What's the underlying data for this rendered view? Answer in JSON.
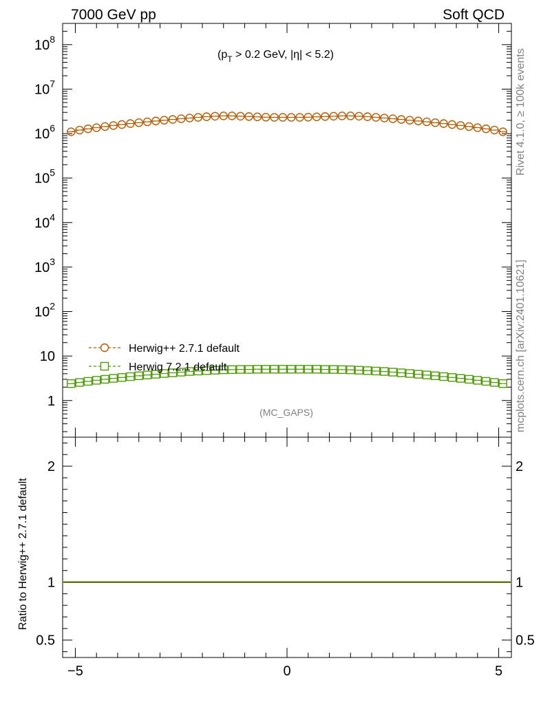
{
  "header": {
    "left": "7000 GeV pp",
    "right": "Soft QCD"
  },
  "side": {
    "rivet": "Rivet 4.1.0, ≥ 100k events",
    "mcplots": "mcplots.cern.ch [arXiv:2401.10621]"
  },
  "cut": {
    "open": "(p",
    "sub": "T",
    "rest": " > 0.2 GeV, |η| < 5.2)"
  },
  "analysis": "(MC_GAPS)",
  "ratio_ylabel": "Ratio to Herwig++ 2.7.1 default",
  "colors": {
    "herwigpp": "#b35900",
    "herwig7": "#4e9a06",
    "ratio_band": "#ccee66",
    "axis": "#000000",
    "muted": "#808080"
  },
  "chart_data": [
    {
      "type": "scatter",
      "yscale": "log",
      "xlim": [
        -5.3,
        5.3
      ],
      "ylim": [
        0.15,
        300000000
      ],
      "ytick_labels": [
        {
          "value": 1,
          "label": "1"
        },
        {
          "value": 10,
          "label": "10"
        },
        {
          "value": 100,
          "label": "10",
          "exp": "2"
        },
        {
          "value": 1000,
          "label": "10",
          "exp": "3"
        },
        {
          "value": 10000,
          "label": "10",
          "exp": "4"
        },
        {
          "value": 100000,
          "label": "10",
          "exp": "5"
        },
        {
          "value": 1000000,
          "label": "10",
          "exp": "6"
        },
        {
          "value": 10000000,
          "label": "10",
          "exp": "7"
        },
        {
          "value": 100000000,
          "label": "10",
          "exp": "8"
        }
      ],
      "x": [
        -5.1,
        -4.9,
        -4.7,
        -4.5,
        -4.3,
        -4.1,
        -3.9,
        -3.7,
        -3.5,
        -3.3,
        -3.1,
        -2.9,
        -2.7,
        -2.5,
        -2.3,
        -2.1,
        -1.9,
        -1.7,
        -1.5,
        -1.3,
        -1.1,
        -0.9,
        -0.7,
        -0.5,
        -0.3,
        -0.1,
        0.1,
        0.3,
        0.5,
        0.7,
        0.9,
        1.1,
        1.3,
        1.5,
        1.7,
        1.9,
        2.1,
        2.3,
        2.5,
        2.7,
        2.9,
        3.1,
        3.3,
        3.5,
        3.7,
        3.9,
        4.1,
        4.3,
        4.5,
        4.7,
        4.9,
        5.1
      ],
      "series": [
        {
          "name": "Herwig++ 2.7.1 default",
          "marker": "circle",
          "values": [
            1100000,
            1200000,
            1280000,
            1360000,
            1440000,
            1520000,
            1600000,
            1680000,
            1760000,
            1840000,
            1920000,
            2000000,
            2080000,
            2160000,
            2240000,
            2320000,
            2400000,
            2460000,
            2500000,
            2500000,
            2460000,
            2420000,
            2380000,
            2340000,
            2320000,
            2320000,
            2320000,
            2320000,
            2340000,
            2380000,
            2420000,
            2460000,
            2500000,
            2500000,
            2460000,
            2400000,
            2320000,
            2240000,
            2160000,
            2080000,
            2000000,
            1920000,
            1840000,
            1760000,
            1680000,
            1600000,
            1520000,
            1440000,
            1360000,
            1280000,
            1200000,
            1100000
          ]
        },
        {
          "name": "Herwig 7.2.1 default",
          "marker": "square",
          "values": [
            2.4,
            2.55,
            2.7,
            2.85,
            3.0,
            3.15,
            3.3,
            3.45,
            3.6,
            3.75,
            3.9,
            4.05,
            4.2,
            4.35,
            4.5,
            4.6,
            4.7,
            4.8,
            4.9,
            4.95,
            5.0,
            5.0,
            5.05,
            5.05,
            5.05,
            5.05,
            5.05,
            5.05,
            5.05,
            5.05,
            5.0,
            5.0,
            4.95,
            4.9,
            4.8,
            4.7,
            4.6,
            4.5,
            4.35,
            4.2,
            4.05,
            3.9,
            3.75,
            3.6,
            3.45,
            3.3,
            3.15,
            3.0,
            2.85,
            2.7,
            2.55,
            2.4
          ]
        }
      ],
      "legend": "bottom-left"
    },
    {
      "type": "line",
      "xlim": [
        -5.3,
        5.3
      ],
      "ylim": [
        0.35,
        2.25
      ],
      "xticks": [
        -5,
        0,
        5
      ],
      "xtick_labels": [
        "−5",
        "0",
        "5"
      ],
      "yticks": [
        0.5,
        1,
        2
      ],
      "ytick_labels": [
        "0.5",
        "1",
        "2"
      ],
      "series": [
        {
          "name": "Herwig++ 2.7.1 default",
          "values": [
            1,
            1
          ]
        },
        {
          "name": "Herwig 7.2.1 default",
          "values": [
            1,
            1
          ]
        }
      ],
      "grid": false
    }
  ]
}
